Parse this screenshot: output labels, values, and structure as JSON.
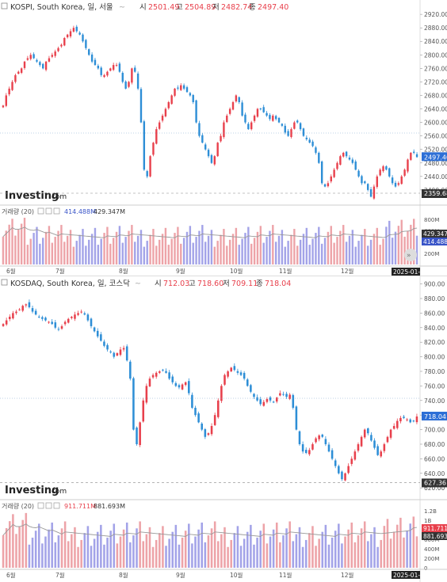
{
  "charts": [
    {
      "id": "kospi",
      "header": {
        "title": "KOSPI, South Korea, 일, 서울",
        "open_label": "시",
        "open": "2501.49",
        "high_label": "고",
        "high": "2504.89",
        "low_label": "저",
        "low": "2482.74",
        "close_label": "종",
        "close": "2497.40"
      },
      "volume_header": {
        "label": "거래량 (20)",
        "v1": "414.488M",
        "v2": "429.347M"
      },
      "price_badge": "2497.40",
      "ref_badge": "2359.68",
      "vol_badge_1": "429.347M",
      "vol_badge_2": "414.488M"
    },
    {
      "id": "kosdaq",
      "header": {
        "title": "KOSDAQ, South Korea, 일, 코스닥",
        "open_label": "시",
        "open": "712.03",
        "high_label": "고",
        "high": "718.60",
        "low_label": "저",
        "low": "709.11",
        "close_label": "종",
        "close": "718.04"
      },
      "volume_header": {
        "label": "거래량 (20)",
        "v1": "911.711M",
        "v2": "881.693M"
      },
      "price_badge": "718.04",
      "ref_badge": "627.36",
      "vol_badge_1": "911.711M",
      "vol_badge_2": "881.693M"
    }
  ],
  "brand": "Investing",
  "brand_suffix": ".com",
  "date_badge": "2025-01-14",
  "colors": {
    "up": "#e8404c",
    "down": "#2d8ed6",
    "vol_up": "#eda3a8",
    "vol_down": "#a3a3e8",
    "ma": "#999999"
  },
  "chart_data": [
    {
      "type": "candlestick",
      "title": "KOSPI, South Korea, 일, 서울",
      "x_tick_labels": [
        "6월",
        "7월",
        "8월",
        "9월",
        "10월",
        "11월",
        "12월"
      ],
      "y_ticks": [
        2920,
        2880,
        2840,
        2800,
        2760,
        2720,
        2680,
        2640,
        2600,
        2560,
        2520,
        2480,
        2440,
        2400
      ],
      "ylim": [
        2395,
        2925
      ],
      "close_series": [
        2650,
        2680,
        2700,
        2720,
        2740,
        2750,
        2760,
        2780,
        2790,
        2800,
        2790,
        2780,
        2770,
        2760,
        2780,
        2790,
        2800,
        2810,
        2820,
        2830,
        2850,
        2860,
        2870,
        2880,
        2870,
        2860,
        2840,
        2820,
        2800,
        2780,
        2770,
        2760,
        2740,
        2740,
        2750,
        2760,
        2770,
        2770,
        2750,
        2720,
        2700,
        2720,
        2760,
        2750,
        2700,
        2600,
        2460,
        2440,
        2500,
        2540,
        2580,
        2600,
        2620,
        2640,
        2660,
        2680,
        2700,
        2700,
        2710,
        2700,
        2690,
        2680,
        2660,
        2600,
        2560,
        2540,
        2520,
        2500,
        2480,
        2500,
        2540,
        2560,
        2600,
        2620,
        2640,
        2660,
        2680,
        2660,
        2620,
        2600,
        2580,
        2600,
        2620,
        2640,
        2640,
        2630,
        2620,
        2610,
        2620,
        2610,
        2600,
        2590,
        2570,
        2560,
        2580,
        2600,
        2600,
        2580,
        2560,
        2550,
        2540,
        2530,
        2510,
        2480,
        2420,
        2410,
        2420,
        2440,
        2460,
        2480,
        2500,
        2510,
        2500,
        2490,
        2480,
        2460,
        2440,
        2420,
        2420,
        2400,
        2380,
        2410,
        2440,
        2460,
        2470,
        2460,
        2440,
        2420,
        2410,
        2420,
        2440,
        2460,
        2490,
        2510,
        2510,
        2497.4
      ],
      "volume_ylim": [
        0,
        900
      ],
      "volume_ticks_M": [
        800,
        600,
        400,
        200
      ],
      "volume_ma_M": 429.347,
      "last_volume_M": 414.488,
      "reference_line": 2359.68,
      "last_close": 2497.4
    },
    {
      "type": "candlestick",
      "title": "KOSDAQ, South Korea, 일, 코스닥",
      "x_tick_labels": [
        "6월",
        "7월",
        "8월",
        "9월",
        "10월",
        "11월",
        "12월"
      ],
      "y_ticks": [
        900,
        880,
        860,
        840,
        820,
        800,
        780,
        760,
        740,
        720,
        700,
        680,
        660,
        640,
        620
      ],
      "ylim": [
        618,
        905
      ],
      "close_series": [
        845,
        850,
        855,
        860,
        862,
        865,
        870,
        872,
        868,
        862,
        858,
        855,
        852,
        850,
        848,
        845,
        840,
        838,
        842,
        848,
        852,
        855,
        858,
        860,
        862,
        858,
        850,
        842,
        835,
        828,
        822,
        815,
        810,
        806,
        800,
        805,
        810,
        812,
        795,
        770,
        700,
        680,
        710,
        740,
        760,
        770,
        775,
        778,
        780,
        782,
        778,
        770,
        765,
        760,
        758,
        762,
        765,
        750,
        730,
        720,
        710,
        700,
        690,
        695,
        705,
        720,
        740,
        760,
        775,
        780,
        785,
        782,
        778,
        775,
        770,
        760,
        752,
        745,
        740,
        735,
        738,
        742,
        740,
        738,
        744,
        750,
        748,
        745,
        748,
        730,
        700,
        680,
        670,
        668,
        672,
        680,
        688,
        692,
        690,
        680,
        670,
        660,
        650,
        640,
        632,
        640,
        650,
        660,
        670,
        680,
        690,
        700,
        695,
        685,
        675,
        665,
        670,
        680,
        690,
        700,
        705,
        712,
        716,
        716,
        714,
        710,
        712,
        718.04
      ],
      "volume_ylim": [
        0,
        1.25
      ],
      "volume_ticks": [
        "1.2B",
        "1B",
        "800M",
        "600M",
        "400M",
        "200M",
        "0"
      ],
      "volume_ma_M": 881.693,
      "last_volume_M": 911.711,
      "reference_line": 627.36,
      "last_close": 718.04
    }
  ]
}
